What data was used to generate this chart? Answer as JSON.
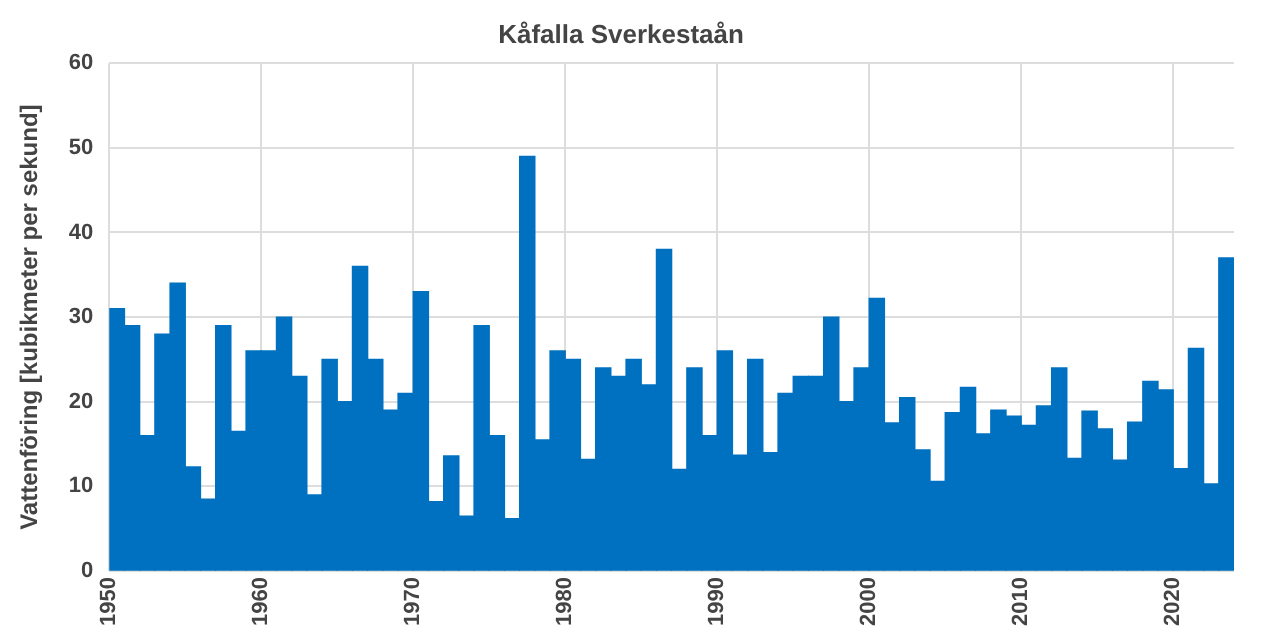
{
  "chart_data": {
    "type": "histogram",
    "title": "Kåfalla Sverkestaån",
    "ylabel": "Vattenföring [kubikmeter per sekund]",
    "bins": [
      1950,
      1951,
      1952,
      1953,
      1954,
      1955,
      1956,
      1957,
      1958,
      1959,
      1960,
      1961,
      1962,
      1963,
      1964,
      1965,
      1966,
      1967,
      1968,
      1969,
      1970,
      1971,
      1972,
      1973,
      1974,
      1975,
      1976,
      1977,
      1978,
      1979,
      1980,
      1981,
      1982,
      1983,
      1984,
      1985,
      1986,
      1987,
      1988,
      1989,
      1990,
      1991,
      1992,
      1993,
      1994,
      1995,
      1996,
      1997,
      1998,
      1999,
      2000,
      2001,
      2002,
      2003,
      2004,
      2005,
      2006,
      2007,
      2008,
      2009,
      2010,
      2011,
      2012,
      2013,
      2014,
      2015,
      2016,
      2017,
      2018,
      2019,
      2020,
      2021,
      2022,
      2023,
      2024
    ],
    "values": [
      31,
      29,
      16,
      28,
      34,
      12.3,
      8.5,
      29,
      16.5,
      26,
      26,
      30,
      23,
      9,
      25,
      20,
      36,
      25,
      19,
      21,
      33,
      8.2,
      13.6,
      6.5,
      29,
      16,
      6.2,
      49,
      15.5,
      26,
      25,
      13.2,
      24,
      23,
      25,
      22,
      38,
      12,
      24,
      16,
      26,
      13.7,
      25,
      14,
      21,
      23,
      23,
      30,
      20,
      24,
      32.2,
      17.5,
      20.5,
      14.3,
      10.6,
      18.7,
      21.7,
      16.2,
      19,
      18.3,
      17.2,
      19.5,
      24,
      13.3,
      18.9,
      16.8,
      13.1,
      17.6,
      22.4,
      21.4,
      12.1,
      26.3,
      10.3,
      37
    ],
    "color": "#0070c0",
    "xlim": [
      1950,
      2024
    ],
    "xticks": [
      1950,
      1960,
      1970,
      1980,
      1990,
      2000,
      2010,
      2020
    ],
    "ylim": [
      0,
      60
    ],
    "yticks": [
      0,
      10,
      20,
      30,
      40,
      50,
      60
    ],
    "grid": true
  }
}
